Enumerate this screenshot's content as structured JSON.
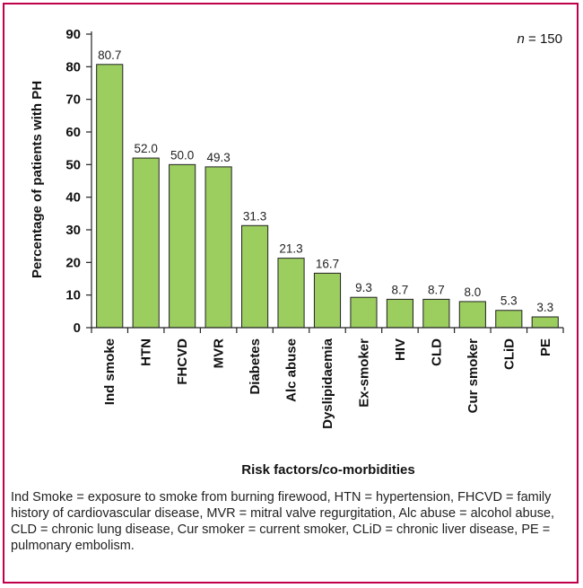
{
  "chart_data": {
    "type": "bar",
    "title": "",
    "xlabel": "Risk factors/co-morbidities",
    "ylabel": "Percentage of patients with PH",
    "annotation": {
      "label": "n",
      "value": " = 150"
    },
    "ylim": [
      0,
      90
    ],
    "yticks": [
      "0",
      "10",
      "20",
      "30",
      "40",
      "50",
      "60",
      "70",
      "80",
      "90"
    ],
    "categories": [
      "Ind smoke",
      "HTN",
      "FHCVD",
      "MVR",
      "Diabetes",
      "Alc abuse",
      "Dyslipidaemia",
      "Ex-smoker",
      "HIV",
      "CLD",
      "Cur smoker",
      "CLiD",
      "PE"
    ],
    "values": [
      80.7,
      52.0,
      50.0,
      49.3,
      31.3,
      21.3,
      16.7,
      9.3,
      8.7,
      8.7,
      8.0,
      5.3,
      3.3
    ],
    "value_labels": [
      "80.7",
      "52.0",
      "50.0",
      "49.3",
      "31.3",
      "21.3",
      "16.7",
      "9.3",
      "8.7",
      "8.7",
      "8.0",
      "5.3",
      "3.3"
    ],
    "bar_color": "#9bcd5f",
    "bar_edge_color": "#222222",
    "grid": false,
    "legend": "none"
  },
  "caption": "Ind Smoke = exposure to smoke from burning firewood, HTN = hypertension, FHCVD = family history of cardiovascular disease, MVR = mitral valve regurgitation, Alc abuse = alcohol abuse, CLD = chronic lung disease, Cur smoker = current smoker, CLiD = chronic liver disease, PE = pulmonary embolism.",
  "frame_color": "#c0004a"
}
